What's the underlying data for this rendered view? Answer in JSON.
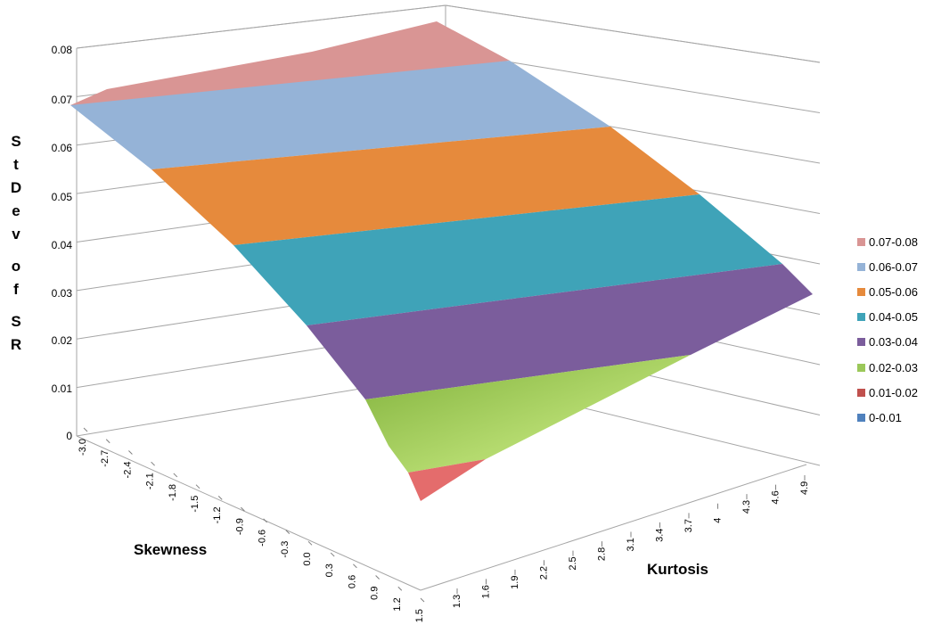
{
  "chart_data": {
    "type": "surface",
    "title": "",
    "zlabel": "StDev of SR",
    "xlabel": "Skewness",
    "ylabel": "Kurtosis",
    "zlim": [
      0,
      0.08
    ],
    "z_ticks": [
      "0",
      "0.01",
      "0.02",
      "0.03",
      "0.04",
      "0.05",
      "0.06",
      "0.07",
      "0.08"
    ],
    "skewness_ticks": [
      "-3.0",
      "-2.7",
      "-2.4",
      "-2.1",
      "-1.8",
      "-1.5",
      "-1.2",
      "-0.9",
      "-0.6",
      "-0.3",
      "0.0",
      "0.3",
      "0.6",
      "0.9",
      "1.2",
      "1.5"
    ],
    "kurtosis_ticks": [
      "1.3",
      "1.6",
      "1.9",
      "2.2",
      "2.5",
      "2.8",
      "3.1",
      "3.4",
      "3.7",
      "4",
      "4.3",
      "4.6",
      "4.9"
    ],
    "grid": true,
    "legend_position": "right",
    "bands": [
      {
        "label": "0.07-0.08",
        "color": "#D99594"
      },
      {
        "label": "0.06-0.07",
        "color": "#95B3D7"
      },
      {
        "label": "0.05-0.06",
        "color": "#E68A3C"
      },
      {
        "label": "0.04-0.05",
        "color": "#3FA3B8"
      },
      {
        "label": "0.03-0.04",
        "color": "#7B5D9C"
      },
      {
        "label": "0.02-0.03",
        "color": "#9BC85A"
      },
      {
        "label": "0.01-0.02",
        "color": "#C0504D"
      },
      {
        "label": "0-0.01",
        "color": "#4F81BD"
      }
    ],
    "surface_corners": [
      {
        "skewness": -3.0,
        "kurtosis": 4.9,
        "stdev": 0.079
      },
      {
        "skewness": -3.0,
        "kurtosis": 1.3,
        "stdev": 0.069
      },
      {
        "skewness": 1.5,
        "kurtosis": 1.3,
        "stdev": 0.018
      },
      {
        "skewness": 1.5,
        "kurtosis": 4.9,
        "stdev": 0.031
      }
    ]
  }
}
